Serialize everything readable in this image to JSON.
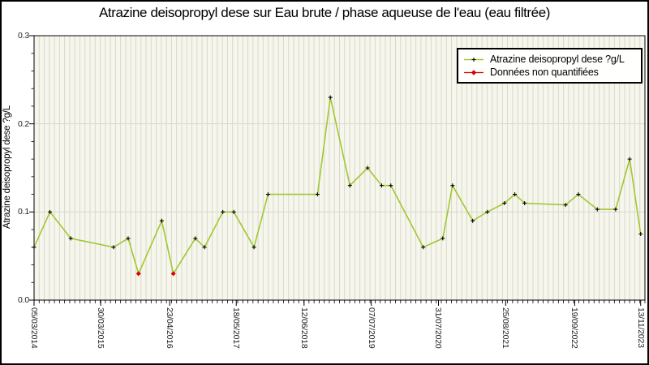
{
  "header": {
    "title": "Atrazine deisopropyl dese sur Eau brute / phase aqueuse de l'eau (eau filtrée)"
  },
  "colors": {
    "line": "#9fc832",
    "marker": "#000000",
    "nonquantified": "#dd0000",
    "plot_bg": "#f7f6ec",
    "grid": "#d8d8ce",
    "frame": "#000000",
    "legend_bg": "#fffffe"
  },
  "chart_data": {
    "type": "line",
    "title": "Atrazine deisopropyl dese sur Eau brute / phase aqueuse de l'eau (eau filtrée)",
    "xlabel": "",
    "ylabel": "Atrazine deisopropyl dese ?g/L",
    "ylim": [
      0.0,
      0.3
    ],
    "grid": true,
    "x_minor_divisions": 120,
    "y_minor_step": 0.02,
    "legend_position": "top-right",
    "legend": {
      "series_label": "Atrazine deisopropyl dese ?g/L",
      "nonquantified_label": "Données non quantifiées"
    },
    "yticks": [
      {
        "label": "0.0",
        "v": 0.0
      },
      {
        "label": "0.1",
        "v": 0.1
      },
      {
        "label": "0.2",
        "v": 0.2
      },
      {
        "label": "0.3",
        "v": 0.3
      }
    ],
    "xticks": [
      {
        "label": "05/03/2014",
        "x": 0.0
      },
      {
        "label": "30/03/2015",
        "x": 0.109
      },
      {
        "label": "23/04/2016",
        "x": 0.222
      },
      {
        "label": "18/05/2017",
        "x": 0.331
      },
      {
        "label": "12/06/2018",
        "x": 0.442
      },
      {
        "label": "07/07/2019",
        "x": 0.552
      },
      {
        "label": "31/07/2020",
        "x": 0.662
      },
      {
        "label": "25/08/2021",
        "x": 0.772
      },
      {
        "label": "19/09/2022",
        "x": 0.885
      },
      {
        "label": "13/11/2023",
        "x": 0.993
      }
    ],
    "points": [
      {
        "x": 0.0,
        "y": 0.06,
        "quantified": true
      },
      {
        "x": 0.026,
        "y": 0.1,
        "quantified": true
      },
      {
        "x": 0.06,
        "y": 0.07,
        "quantified": true
      },
      {
        "x": 0.13,
        "y": 0.06,
        "quantified": true
      },
      {
        "x": 0.154,
        "y": 0.07,
        "quantified": true
      },
      {
        "x": 0.171,
        "y": 0.03,
        "quantified": false
      },
      {
        "x": 0.209,
        "y": 0.09,
        "quantified": true
      },
      {
        "x": 0.228,
        "y": 0.03,
        "quantified": false
      },
      {
        "x": 0.264,
        "y": 0.07,
        "quantified": true
      },
      {
        "x": 0.279,
        "y": 0.06,
        "quantified": true
      },
      {
        "x": 0.309,
        "y": 0.1,
        "quantified": true
      },
      {
        "x": 0.327,
        "y": 0.1,
        "quantified": true
      },
      {
        "x": 0.36,
        "y": 0.06,
        "quantified": true
      },
      {
        "x": 0.383,
        "y": 0.12,
        "quantified": true
      },
      {
        "x": 0.464,
        "y": 0.12,
        "quantified": true
      },
      {
        "x": 0.485,
        "y": 0.23,
        "quantified": true
      },
      {
        "x": 0.517,
        "y": 0.13,
        "quantified": true
      },
      {
        "x": 0.546,
        "y": 0.15,
        "quantified": true
      },
      {
        "x": 0.569,
        "y": 0.13,
        "quantified": true
      },
      {
        "x": 0.584,
        "y": 0.13,
        "quantified": true
      },
      {
        "x": 0.637,
        "y": 0.06,
        "quantified": true
      },
      {
        "x": 0.669,
        "y": 0.07,
        "quantified": true
      },
      {
        "x": 0.685,
        "y": 0.13,
        "quantified": true
      },
      {
        "x": 0.718,
        "y": 0.09,
        "quantified": true
      },
      {
        "x": 0.742,
        "y": 0.1,
        "quantified": true
      },
      {
        "x": 0.77,
        "y": 0.11,
        "quantified": true
      },
      {
        "x": 0.787,
        "y": 0.12,
        "quantified": true
      },
      {
        "x": 0.803,
        "y": 0.11,
        "quantified": true
      },
      {
        "x": 0.87,
        "y": 0.108,
        "quantified": true
      },
      {
        "x": 0.891,
        "y": 0.12,
        "quantified": true
      },
      {
        "x": 0.922,
        "y": 0.103,
        "quantified": true
      },
      {
        "x": 0.952,
        "y": 0.103,
        "quantified": true
      },
      {
        "x": 0.975,
        "y": 0.16,
        "quantified": true
      },
      {
        "x": 0.993,
        "y": 0.075,
        "quantified": true
      }
    ]
  }
}
